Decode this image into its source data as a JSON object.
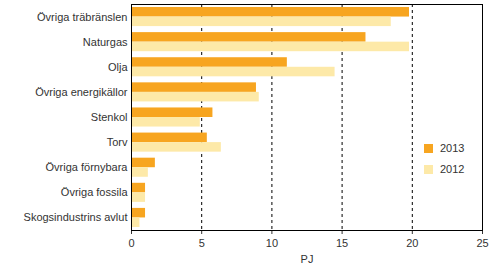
{
  "chart_data": {
    "type": "bar",
    "orientation": "horizontal",
    "categories": [
      "Övriga träbränslen",
      "Naturgas",
      "Olja",
      "Övriga energikällor",
      "Stenkol",
      "Torv",
      "Övriga förnybara",
      "Övriga fossila",
      "Skogsindustrins avlut"
    ],
    "series": [
      {
        "name": "2013",
        "color": "#f7a520",
        "values": [
          19.8,
          16.7,
          11.1,
          8.9,
          5.8,
          5.4,
          1.7,
          1.0,
          1.0
        ]
      },
      {
        "name": "2012",
        "color": "#fde9a8",
        "values": [
          18.5,
          19.8,
          14.5,
          9.1,
          4.9,
          6.4,
          1.2,
          1.0,
          0.6
        ]
      }
    ],
    "xlim": [
      0,
      25
    ],
    "xticks": [
      0,
      5,
      10,
      15,
      20,
      25
    ],
    "x_label": "PJ",
    "grid": true,
    "legend": "right"
  }
}
